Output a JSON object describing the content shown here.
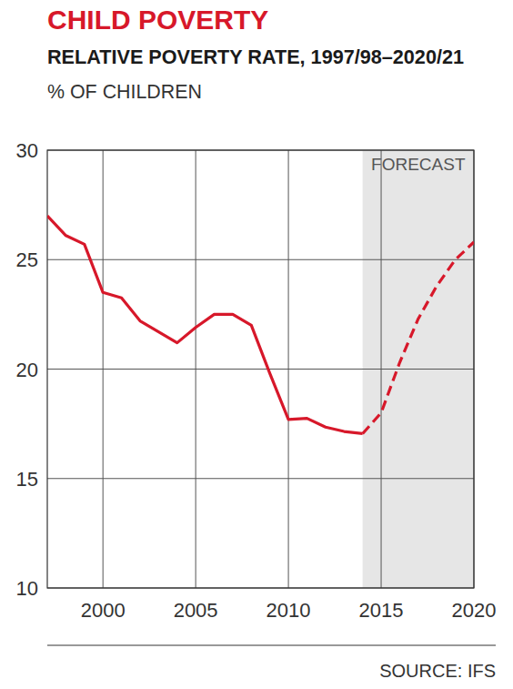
{
  "chart_data": {
    "type": "line",
    "title": "CHILD POVERTY",
    "subtitle": "RELATIVE POVERTY RATE, 1997/98–2020/21",
    "y_label": "% OF CHILDREN",
    "source": "SOURCE: IFS",
    "x": [
      1997,
      1998,
      1999,
      2000,
      2001,
      2002,
      2003,
      2004,
      2005,
      2006,
      2007,
      2008,
      2009,
      2010,
      2011,
      2012,
      2013,
      2014,
      2015,
      2016,
      2017,
      2018,
      2019,
      2020
    ],
    "series": [
      {
        "color": "#d7182a",
        "line_style": "solid",
        "values": [
          27.0,
          26.1,
          25.7,
          23.5,
          23.25,
          22.2,
          21.7,
          21.2,
          21.9,
          22.5,
          22.5,
          22.0,
          19.8,
          17.7,
          17.75,
          17.35,
          17.15,
          17.05,
          null,
          null,
          null,
          null,
          null,
          null
        ]
      },
      {
        "name": "FORECAST",
        "color": "#d7182a",
        "line_style": "dashed",
        "values": [
          null,
          null,
          null,
          null,
          null,
          null,
          null,
          null,
          null,
          null,
          null,
          null,
          null,
          null,
          null,
          null,
          null,
          17.05,
          18.0,
          20.3,
          22.3,
          23.8,
          25.0,
          25.8
        ]
      }
    ],
    "xlim": [
      1997,
      2020
    ],
    "xticks": [
      2000,
      2005,
      2010,
      2015,
      2020
    ],
    "ylim": [
      10,
      30
    ],
    "yticks": [
      10,
      15,
      20,
      25,
      30
    ],
    "grid": true
  }
}
